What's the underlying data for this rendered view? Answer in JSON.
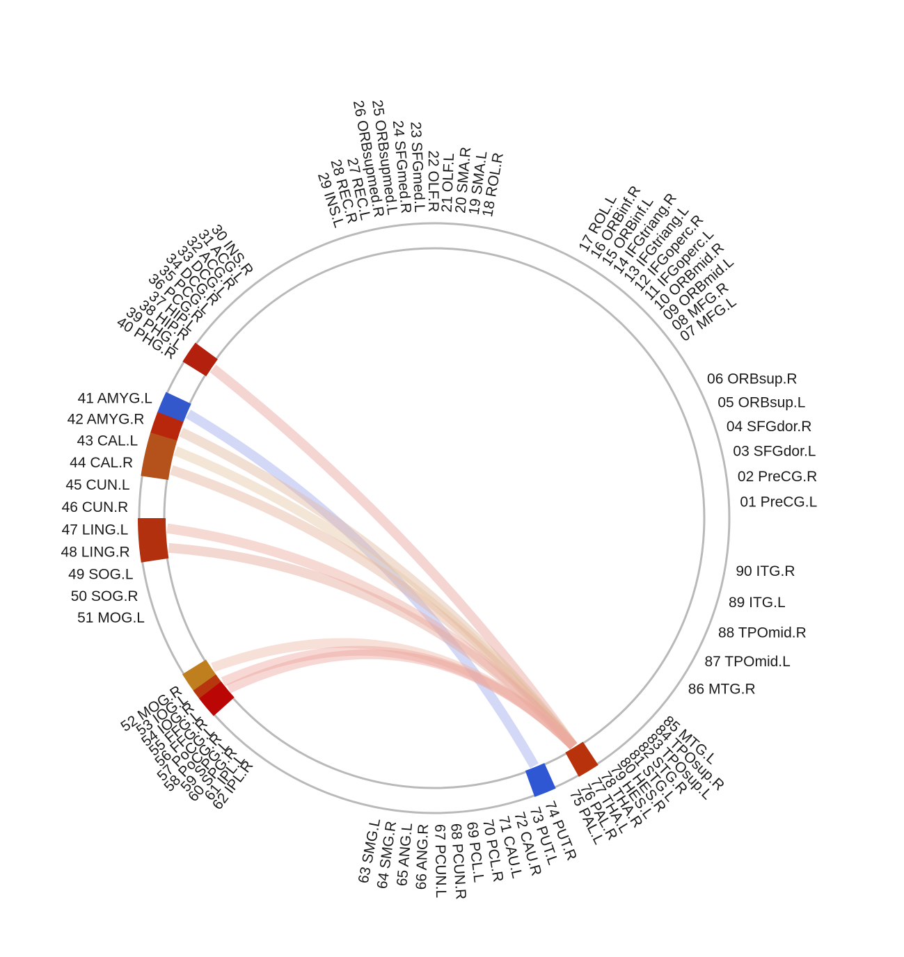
{
  "regions": [
    "01 PreCG.L",
    "02 PreCG.R",
    "03 SFGdor.L",
    "04 SFGdor.R",
    "05 ORBsup.L",
    "06 ORBsup.R",
    "07 MFG.L",
    "08 MFG.R",
    "09 ORBmid.L",
    "10 ORBmid.R",
    "11 IFGoperc.L",
    "12 IFGoperc.R",
    "13 IFGtriang.L",
    "14 IFGtriang.R",
    "15 ORBinf.L",
    "16 ORBinf.R",
    "17 ROL.L",
    "18 ROL.R",
    "19 SMA.L",
    "20 SMA.R",
    "21 OLF.L",
    "22 OLF.R",
    "23 SFGmed.L",
    "24 SFGmed.R",
    "25 ORBsupmed.L",
    "26 ORBsupmed.R",
    "27 REC.L",
    "28 REC.R",
    "29 INS.L",
    "30 INS.R",
    "31 ACG.L",
    "32 ACG.R",
    "33 DCG.L",
    "34 DCG.R",
    "35 PCG.L",
    "36 PCG.R",
    "37 HIP.L",
    "38 HIP.R",
    "39 PHG.L",
    "40 PHG.R",
    "41 AMYG.L",
    "42 AMYG.R",
    "43 CAL.L",
    "44 CAL.R",
    "45 CUN.L",
    "46 CUN.R",
    "47 LING.L",
    "48 LING.R",
    "49 SOG.L",
    "50 SOG.R",
    "51 MOG.L",
    "52 MOG.R",
    "53 IOG.L",
    "54 IOG.R",
    "55 FFG.L",
    "56 FFG.R",
    "57 PoCG.L",
    "58 PoCG.R",
    "59 SPG.L",
    "60 SPG.R",
    "61 IPL.L",
    "62 IPL.R",
    "63 SMG.L",
    "64 SMG.R",
    "65 ANG.L",
    "66 ANG.R",
    "67 PCUN.L",
    "68 PCUN.R",
    "69 PCL.L",
    "70 PCL.R",
    "71 CAU.L",
    "72 CAU.R",
    "73 PUT.L",
    "74 PUT.R",
    "75 PAL.L",
    "76 PAL.R",
    "77 THA.L",
    "78 THA.R",
    "79 HES.L",
    "80 HES.R",
    "81 STG.L",
    "82 STG.R",
    "83 TPOsup.L",
    "84 TPOsup.R",
    "85 MTG.L",
    "86 MTG.R",
    "87 TPOmid.L",
    "88 TPOmid.R",
    "89 ITG.L",
    "90 ITG.R"
  ],
  "label_angles": [
    {
      "region": 1,
      "angle_deg": -3.0
    },
    {
      "region": 6,
      "angle_deg": -27.0
    },
    {
      "region": 7,
      "angle_deg": -36.0
    },
    {
      "region": 17,
      "angle_deg": -61.0
    },
    {
      "region": 18,
      "angle_deg": -80.0
    },
    {
      "region": 29,
      "angle_deg": -108.0
    },
    {
      "region": 30,
      "angle_deg": -127.0
    },
    {
      "region": 40,
      "angle_deg": -148.0
    },
    {
      "region": 41,
      "angle_deg": -157.0
    },
    {
      "region": 51,
      "angle_deg": -199.0
    },
    {
      "region": 52,
      "angle_deg": -214.0
    },
    {
      "region": 62,
      "angle_deg": -233.0
    },
    {
      "region": 63,
      "angle_deg": -259.0
    },
    {
      "region": 74,
      "angle_deg": -292.0
    },
    {
      "region": 75,
      "angle_deg": -297.0
    },
    {
      "region": 85,
      "angle_deg": -319.0
    },
    {
      "region": 86,
      "angle_deg": -326.0
    },
    {
      "region": 90,
      "angle_deg": -350.0
    }
  ],
  "highlighted_nodes": [
    {
      "regions": [
        39
      ],
      "color": "#b3200e"
    },
    {
      "regions": [
        41
      ],
      "color": "#3258cc"
    },
    {
      "regions": [
        42
      ],
      "color": "#b8260c"
    },
    {
      "regions": [
        43,
        44
      ],
      "color": "#b5511a"
    },
    {
      "regions": [
        47,
        48
      ],
      "color": "#b3300e"
    },
    {
      "regions": [
        52
      ],
      "color": "#bf7f1f"
    },
    {
      "regions": [
        54
      ],
      "color": "#b8360e"
    },
    {
      "regions": [
        55
      ],
      "color": "#bb0606"
    },
    {
      "regions": [
        74
      ],
      "color": "#2f57d4"
    },
    {
      "regions": [
        77
      ],
      "color": "#b8330c"
    }
  ],
  "connections": [
    {
      "source": 39,
      "target": 77,
      "color": "#e8a29a"
    },
    {
      "source": 41,
      "target": 74,
      "color": "#9ea8ee"
    },
    {
      "source": 42,
      "target": 77,
      "color": "#e3b8a0"
    },
    {
      "source": 43,
      "target": 77,
      "color": "#e6c8a6"
    },
    {
      "source": 44,
      "target": 77,
      "color": "#e5b49c"
    },
    {
      "source": 47,
      "target": 77,
      "color": "#eeaaa0"
    },
    {
      "source": 48,
      "target": 77,
      "color": "#e4a898"
    },
    {
      "source": 52,
      "target": 77,
      "color": "#eebaa8"
    },
    {
      "source": 54,
      "target": 77,
      "color": "#eea8a0"
    },
    {
      "source": 55,
      "target": 77,
      "color": "#eaa69e"
    }
  ],
  "ring_color": "#b9b9b9"
}
